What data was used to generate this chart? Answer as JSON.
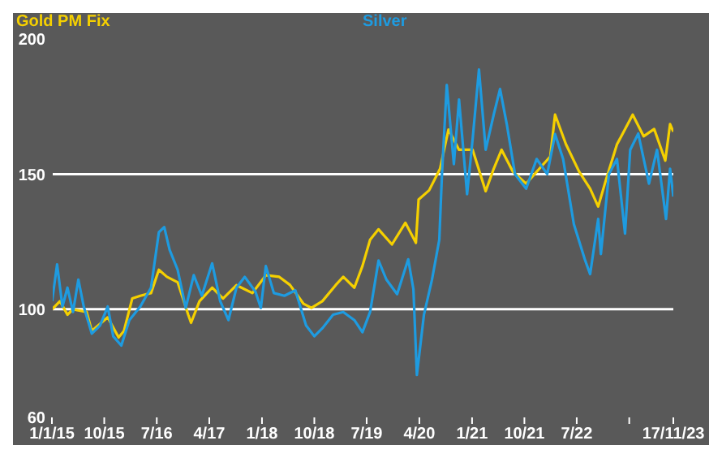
{
  "chart_data": {
    "type": "line",
    "legend": "top",
    "xlim": [
      "2015-01-01",
      "2023-11-17"
    ],
    "xticks": [
      {
        "value": "2015-01-01",
        "label": "1/1/15"
      },
      {
        "value": "2015-10-01",
        "label": "10/15"
      },
      {
        "value": "2016-07-01",
        "label": "7/16"
      },
      {
        "value": "2017-04-01",
        "label": "4/17"
      },
      {
        "value": "2018-01-01",
        "label": "1/18"
      },
      {
        "value": "2018-10-01",
        "label": "10/18"
      },
      {
        "value": "2019-07-01",
        "label": "7/19"
      },
      {
        "value": "2020-04-01",
        "label": "4/20"
      },
      {
        "value": "2021-01-01",
        "label": "1/21"
      },
      {
        "value": "2021-10-01",
        "label": "10/21"
      },
      {
        "value": "2022-07-01",
        "label": "7/22"
      },
      {
        "value": "2023-04-01",
        "label": null
      },
      {
        "value": "2023-11-17",
        "label": "17/11/23"
      }
    ],
    "ylim": [
      60,
      200
    ],
    "yticks": [
      60,
      100,
      150,
      200
    ],
    "ref_lines": [
      {
        "axis": "y",
        "value": 100,
        "color": "#ffffff"
      },
      {
        "axis": "y",
        "value": 150,
        "color": "#ffffff"
      }
    ],
    "series": [
      {
        "name": "Gold PM Fix",
        "color": "#f5d000",
        "x": [
          "2015-01-02",
          "2015-02-12",
          "2015-03-23",
          "2015-04-21",
          "2015-07-01",
          "2015-07-28",
          "2015-10-19",
          "2015-12-15",
          "2016-01-12",
          "2016-02-24",
          "2016-04-06",
          "2016-06-01",
          "2016-07-12",
          "2016-08-23",
          "2016-10-18",
          "2016-12-12",
          "2016-12-27",
          "2017-02-09",
          "2017-04-16",
          "2017-06-12",
          "2017-08-21",
          "2017-11-12",
          "2018-01-21",
          "2018-04-01",
          "2018-05-27",
          "2018-08-06",
          "2018-09-16",
          "2018-11-12",
          "2019-01-21",
          "2019-03-01",
          "2019-04-28",
          "2019-06-09",
          "2019-07-19",
          "2019-09-01",
          "2019-11-10",
          "2020-01-19",
          "2020-03-14",
          "2020-03-28",
          "2020-05-22",
          "2020-07-18",
          "2020-08-31",
          "2020-10-25",
          "2021-01-04",
          "2021-03-13",
          "2021-04-24",
          "2021-06-04",
          "2021-08-01",
          "2021-10-10",
          "2021-12-18",
          "2022-02-13",
          "2022-03-10",
          "2022-05-06",
          "2022-07-13",
          "2022-09-09",
          "2022-10-21",
          "2022-12-01",
          "2023-01-27",
          "2023-04-19",
          "2023-06-15",
          "2023-08-09",
          "2023-10-06",
          "2023-10-31",
          "2023-11-17"
        ],
        "values": [
          100,
          103,
          98,
          100,
          99,
          92,
          97,
          89.6,
          92,
          104,
          105,
          106,
          114.6,
          112,
          110,
          98,
          95,
          103,
          108,
          104,
          108.9,
          106,
          112.6,
          112,
          109,
          102,
          100.5,
          103,
          109,
          112,
          108,
          116,
          125.7,
          129.6,
          124,
          132,
          124.6,
          140.6,
          144,
          152,
          166.5,
          159,
          159,
          143.7,
          152,
          159,
          151,
          146.5,
          152,
          156.5,
          172,
          161,
          151,
          144.6,
          138,
          148,
          161,
          172,
          164,
          166.7,
          155,
          168.5,
          165.7
        ]
      },
      {
        "name": "Silver",
        "color": "#1e9be0",
        "x": [
          "2015-01-02",
          "2015-01-28",
          "2015-02-25",
          "2015-03-23",
          "2015-04-21",
          "2015-05-19",
          "2015-06-16",
          "2015-07-28",
          "2015-09-09",
          "2015-10-19",
          "2015-11-17",
          "2015-12-29",
          "2016-02-09",
          "2016-04-06",
          "2016-06-01",
          "2016-07-12",
          "2016-08-09",
          "2016-09-06",
          "2016-10-18",
          "2016-11-29",
          "2017-01-10",
          "2017-02-21",
          "2017-04-16",
          "2017-05-28",
          "2017-07-10",
          "2017-08-21",
          "2017-10-03",
          "2017-11-28",
          "2017-12-26",
          "2018-01-21",
          "2018-03-04",
          "2018-04-28",
          "2018-06-24",
          "2018-08-19",
          "2018-10-01",
          "2018-11-12",
          "2019-01-07",
          "2019-03-01",
          "2019-04-28",
          "2019-06-09",
          "2019-07-19",
          "2019-09-01",
          "2019-10-12",
          "2019-12-07",
          "2020-02-03",
          "2020-03-01",
          "2020-03-19",
          "2020-04-25",
          "2020-06-06",
          "2020-07-14",
          "2020-07-28",
          "2020-08-22",
          "2020-09-28",
          "2020-10-25",
          "2020-12-06",
          "2021-01-04",
          "2021-02-06",
          "2021-03-13",
          "2021-04-24",
          "2021-05-27",
          "2021-07-01",
          "2021-08-13",
          "2021-10-10",
          "2021-12-04",
          "2022-01-28",
          "2022-03-10",
          "2022-04-21",
          "2022-06-16",
          "2022-08-12",
          "2022-09-09",
          "2022-10-21",
          "2022-11-04",
          "2022-12-16",
          "2023-01-27",
          "2023-03-10",
          "2023-04-06",
          "2023-05-18",
          "2023-07-13",
          "2023-08-24",
          "2023-10-10",
          "2023-10-31",
          "2023-11-17"
        ],
        "values": [
          103,
          116.6,
          101,
          108,
          99,
          111,
          101,
          91,
          94,
          101,
          90,
          86.6,
          96,
          101,
          108,
          128.5,
          130.4,
          122,
          114.6,
          100.5,
          112.6,
          105,
          117,
          103,
          96,
          108,
          112,
          106.5,
          100.5,
          116,
          106,
          105,
          107,
          94,
          90,
          93,
          98,
          99,
          96,
          91.5,
          99,
          118,
          111,
          105.6,
          118.5,
          107.4,
          75.7,
          98,
          111,
          125.7,
          150,
          183,
          153.7,
          177.6,
          142.6,
          163,
          188.7,
          159,
          172,
          181.5,
          168.5,
          150,
          144.6,
          155.6,
          150,
          164.8,
          155.6,
          131.5,
          118.5,
          113,
          133.4,
          120.4,
          150,
          155.6,
          128,
          159,
          165,
          146.5,
          159,
          133.4,
          152,
          141.7
        ]
      }
    ]
  }
}
